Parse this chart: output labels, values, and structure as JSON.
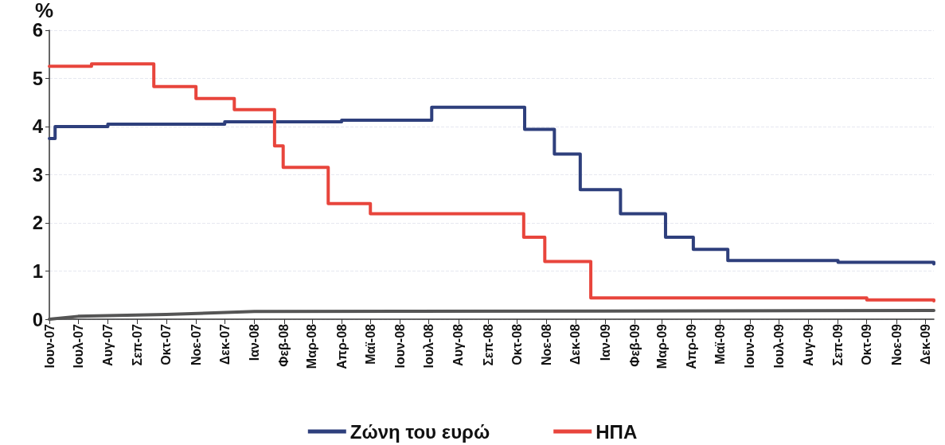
{
  "chart_data": {
    "type": "step",
    "ylabel": "%",
    "ylim": [
      0,
      6
    ],
    "yticks": [
      0,
      1,
      2,
      3,
      4,
      5,
      6
    ],
    "grid": "y",
    "legend": "bottom",
    "line_style": "solid",
    "marker": "none",
    "xlim": [
      "2007-06-01",
      "2009-12-10"
    ],
    "xticks": [
      {
        "value": "2007-06",
        "label": "Ιουν-07"
      },
      {
        "value": "2007-07",
        "label": "Ιουλ-07"
      },
      {
        "value": "2007-08",
        "label": "Αυγ-07"
      },
      {
        "value": "2007-09",
        "label": "Σεπ-07"
      },
      {
        "value": "2007-10",
        "label": "Οκτ-07"
      },
      {
        "value": "2007-11",
        "label": "Νοε-07"
      },
      {
        "value": "2007-12",
        "label": "Δεκ-07"
      },
      {
        "value": "2008-01",
        "label": "Ιαν-08"
      },
      {
        "value": "2008-02",
        "label": "Φεβ-08"
      },
      {
        "value": "2008-03",
        "label": "Μαρ-08"
      },
      {
        "value": "2008-04",
        "label": "Απρ-08"
      },
      {
        "value": "2008-05",
        "label": "Μαϊ-08"
      },
      {
        "value": "2008-06",
        "label": "Ιουν-08"
      },
      {
        "value": "2008-07",
        "label": "Ιουλ-08"
      },
      {
        "value": "2008-08",
        "label": "Αυγ-08"
      },
      {
        "value": "2008-09",
        "label": "Σεπ-08"
      },
      {
        "value": "2008-10",
        "label": "Οκτ-08"
      },
      {
        "value": "2008-11",
        "label": "Νοε-08"
      },
      {
        "value": "2008-12",
        "label": "Δεκ-08"
      },
      {
        "value": "2009-01",
        "label": "Ιαν-09"
      },
      {
        "value": "2009-02",
        "label": "Φεβ-09"
      },
      {
        "value": "2009-03",
        "label": "Μαρ-09"
      },
      {
        "value": "2009-04",
        "label": "Απρ-09"
      },
      {
        "value": "2009-05",
        "label": "Μαϊ-09"
      },
      {
        "value": "2009-06",
        "label": "Ιουν-09"
      },
      {
        "value": "2009-07",
        "label": "Ιουλ-09"
      },
      {
        "value": "2009-08",
        "label": "Αυγ-09"
      },
      {
        "value": "2009-09",
        "label": "Σεπ-09"
      },
      {
        "value": "2009-10",
        "label": "Οκτ-09"
      },
      {
        "value": "2009-11",
        "label": "Νοε-09"
      },
      {
        "value": "2009-12",
        "label": "Δεκ-09"
      }
    ],
    "series": [
      {
        "name": "Ζώνη του ευρώ",
        "color": "#2e3f7c",
        "x": [
          "2007-06-01",
          "2007-06-07",
          "2007-08-01",
          "2007-12-01",
          "2008-04-01",
          "2008-07-04",
          "2008-10-09",
          "2008-11-09",
          "2008-12-06",
          "2009-01-17",
          "2009-03-05",
          "2009-04-03",
          "2009-05-09",
          "2009-09-01",
          "2009-12-10"
        ],
        "values": [
          3.75,
          4.0,
          4.05,
          4.1,
          4.13,
          4.4,
          3.94,
          3.43,
          2.69,
          2.19,
          1.7,
          1.45,
          1.22,
          1.18,
          1.15
        ]
      },
      {
        "name": "ΗΠΑ",
        "color": "#e8453c",
        "x": [
          "2007-06-01",
          "2007-07-15",
          "2007-09-18",
          "2007-11-01",
          "2007-12-11",
          "2008-01-22",
          "2008-01-31",
          "2008-03-18",
          "2008-05-01",
          "2008-10-08",
          "2008-10-30",
          "2008-12-17",
          "2009-10-01",
          "2009-12-10"
        ],
        "values": [
          5.25,
          5.3,
          4.83,
          4.58,
          4.35,
          3.6,
          3.15,
          2.4,
          2.19,
          1.7,
          1.2,
          0.44,
          0.4,
          0.38
        ]
      },
      {
        "type": "line",
        "color": "#555555",
        "x": [
          "2007-06-01",
          "2007-07-01",
          "2007-10-01",
          "2008-01-01",
          "2009-12-10"
        ],
        "values": [
          0,
          0.06,
          0.1,
          0.16,
          0.18
        ]
      }
    ]
  }
}
